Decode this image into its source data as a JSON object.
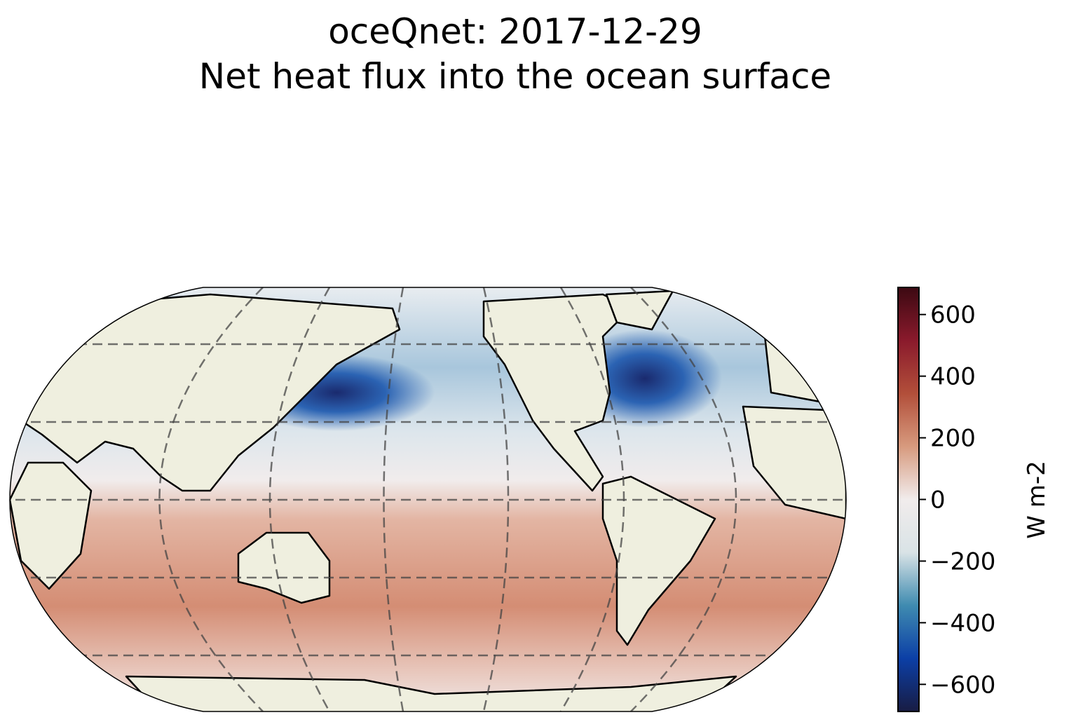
{
  "chart_data": {
    "type": "map",
    "title": "oceQnet: 2017-12-29",
    "subtitle": "Net heat flux into the ocean surface",
    "colorbar": {
      "label": "W m-2",
      "lim": [
        -688,
        688
      ],
      "ticks": [
        {
          "value": -600,
          "label": "−600"
        },
        {
          "value": -400,
          "label": "−400"
        },
        {
          "value": -200,
          "label": "−200"
        },
        0,
        200,
        400,
        600
      ],
      "colormap": [
        "#181c43",
        "#0c3fa6",
        "#3f8bb0",
        "#d9e3e6",
        "#f1ecec",
        "#d79a7e",
        "#b24f3a",
        "#8a1a2c",
        "#3c0912"
      ]
    }
  }
}
